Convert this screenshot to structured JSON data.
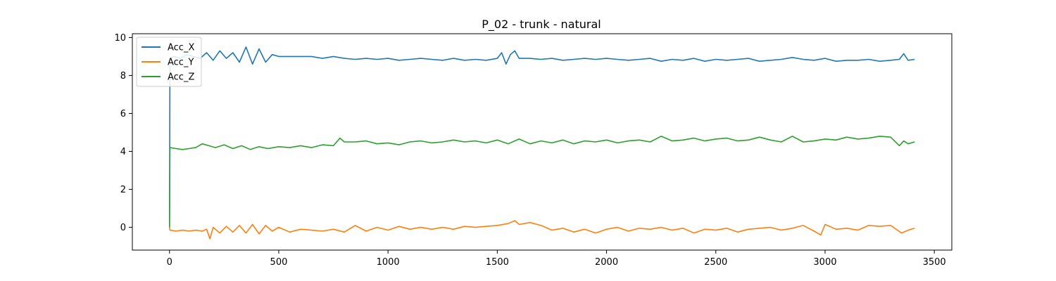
{
  "chart_data": {
    "type": "line",
    "title": "P_02 - trunk - natural",
    "xlabel": "",
    "ylabel": "",
    "xlim": [
      -170,
      3580
    ],
    "ylim": [
      -1.2,
      10.2
    ],
    "x_ticks": [
      0,
      500,
      1000,
      1500,
      2000,
      2500,
      3000,
      3500
    ],
    "y_ticks": [
      0,
      2,
      4,
      6,
      8,
      10
    ],
    "grid": false,
    "legend_position": "upper-left",
    "series": [
      {
        "name": "Acc_X",
        "color": "#1f77b4",
        "start": [
          0,
          0
        ],
        "x": [
          2,
          20,
          50,
          80,
          110,
          140,
          170,
          200,
          230,
          260,
          290,
          320,
          350,
          380,
          410,
          440,
          470,
          500,
          550,
          600,
          650,
          700,
          750,
          800,
          850,
          900,
          950,
          1000,
          1050,
          1100,
          1150,
          1200,
          1250,
          1300,
          1350,
          1400,
          1450,
          1500,
          1520,
          1540,
          1560,
          1580,
          1600,
          1650,
          1700,
          1750,
          1800,
          1850,
          1900,
          1950,
          2000,
          2050,
          2100,
          2150,
          2200,
          2250,
          2300,
          2350,
          2400,
          2450,
          2500,
          2550,
          2600,
          2650,
          2700,
          2750,
          2800,
          2850,
          2900,
          2950,
          3000,
          3050,
          3100,
          3150,
          3200,
          3250,
          3300,
          3340,
          3360,
          3380,
          3410
        ],
        "values": [
          8.9,
          9.0,
          8.9,
          9.1,
          9.0,
          8.9,
          9.2,
          8.8,
          9.3,
          8.9,
          9.2,
          8.7,
          9.5,
          8.6,
          9.4,
          8.7,
          9.1,
          9.0,
          9.0,
          9.0,
          9.0,
          8.9,
          9.0,
          8.9,
          8.85,
          8.9,
          8.85,
          8.9,
          8.8,
          8.85,
          8.9,
          8.85,
          8.8,
          8.9,
          8.8,
          8.85,
          8.8,
          8.9,
          9.2,
          8.6,
          9.1,
          9.3,
          8.9,
          8.9,
          8.85,
          8.9,
          8.8,
          8.85,
          8.9,
          8.85,
          8.9,
          8.85,
          8.8,
          8.85,
          8.9,
          8.75,
          8.85,
          8.8,
          8.9,
          8.75,
          8.85,
          8.8,
          8.85,
          8.9,
          8.75,
          8.8,
          8.85,
          8.95,
          8.85,
          8.8,
          8.9,
          8.75,
          8.8,
          8.8,
          8.85,
          8.75,
          8.8,
          8.85,
          9.15,
          8.8,
          8.85
        ]
      },
      {
        "name": "Acc_Y",
        "color": "#ff7f0e",
        "start": [
          0,
          0
        ],
        "x": [
          2,
          30,
          60,
          90,
          120,
          150,
          170,
          185,
          200,
          230,
          260,
          290,
          320,
          350,
          380,
          410,
          440,
          470,
          500,
          550,
          600,
          650,
          700,
          750,
          800,
          850,
          900,
          950,
          1000,
          1050,
          1100,
          1150,
          1200,
          1250,
          1300,
          1350,
          1400,
          1450,
          1500,
          1550,
          1580,
          1600,
          1650,
          1700,
          1750,
          1800,
          1850,
          1900,
          1950,
          2000,
          2050,
          2100,
          2150,
          2200,
          2250,
          2300,
          2350,
          2400,
          2450,
          2500,
          2550,
          2600,
          2650,
          2700,
          2750,
          2800,
          2850,
          2900,
          2950,
          2980,
          3000,
          3050,
          3100,
          3150,
          3200,
          3250,
          3300,
          3350,
          3380,
          3410
        ],
        "values": [
          -0.15,
          -0.2,
          -0.15,
          -0.2,
          -0.15,
          -0.2,
          -0.1,
          -0.6,
          0.0,
          -0.3,
          0.05,
          -0.25,
          0.1,
          -0.3,
          0.15,
          -0.35,
          0.1,
          -0.2,
          0.0,
          -0.25,
          -0.1,
          -0.15,
          -0.2,
          -0.1,
          -0.25,
          0.1,
          -0.2,
          0.0,
          -0.15,
          0.05,
          -0.1,
          0.0,
          -0.1,
          0.0,
          -0.1,
          0.05,
          0.0,
          0.05,
          0.1,
          0.2,
          0.35,
          0.15,
          0.25,
          0.1,
          -0.15,
          -0.05,
          -0.25,
          -0.1,
          -0.3,
          -0.1,
          0.0,
          -0.2,
          -0.05,
          -0.1,
          0.0,
          -0.15,
          -0.05,
          -0.3,
          -0.1,
          -0.15,
          -0.05,
          -0.25,
          -0.1,
          -0.05,
          0.0,
          -0.15,
          -0.05,
          0.1,
          -0.2,
          -0.4,
          0.15,
          -0.1,
          -0.05,
          -0.15,
          0.1,
          0.05,
          0.1,
          -0.3,
          -0.15,
          -0.05
        ]
      },
      {
        "name": "Acc_Z",
        "color": "#2ca02c",
        "start": [
          0,
          0
        ],
        "x": [
          2,
          30,
          60,
          90,
          120,
          150,
          180,
          210,
          250,
          290,
          330,
          370,
          410,
          450,
          500,
          550,
          600,
          650,
          700,
          750,
          780,
          800,
          850,
          900,
          950,
          1000,
          1050,
          1100,
          1150,
          1200,
          1250,
          1300,
          1350,
          1400,
          1450,
          1500,
          1550,
          1600,
          1650,
          1700,
          1750,
          1800,
          1850,
          1900,
          1950,
          2000,
          2050,
          2100,
          2150,
          2200,
          2250,
          2300,
          2350,
          2400,
          2450,
          2500,
          2550,
          2600,
          2650,
          2700,
          2750,
          2800,
          2850,
          2900,
          2950,
          3000,
          3050,
          3100,
          3150,
          3200,
          3250,
          3300,
          3340,
          3360,
          3380,
          3410
        ],
        "values": [
          4.2,
          4.15,
          4.1,
          4.15,
          4.2,
          4.4,
          4.3,
          4.2,
          4.35,
          4.15,
          4.3,
          4.1,
          4.25,
          4.15,
          4.25,
          4.2,
          4.3,
          4.2,
          4.35,
          4.3,
          4.7,
          4.5,
          4.5,
          4.55,
          4.4,
          4.45,
          4.35,
          4.5,
          4.55,
          4.45,
          4.5,
          4.6,
          4.5,
          4.55,
          4.45,
          4.6,
          4.4,
          4.65,
          4.4,
          4.55,
          4.45,
          4.6,
          4.4,
          4.55,
          4.5,
          4.6,
          4.45,
          4.55,
          4.6,
          4.5,
          4.8,
          4.55,
          4.6,
          4.7,
          4.55,
          4.65,
          4.7,
          4.55,
          4.6,
          4.75,
          4.6,
          4.5,
          4.8,
          4.5,
          4.55,
          4.65,
          4.6,
          4.75,
          4.65,
          4.7,
          4.8,
          4.75,
          4.3,
          4.55,
          4.4,
          4.5
        ]
      }
    ]
  }
}
